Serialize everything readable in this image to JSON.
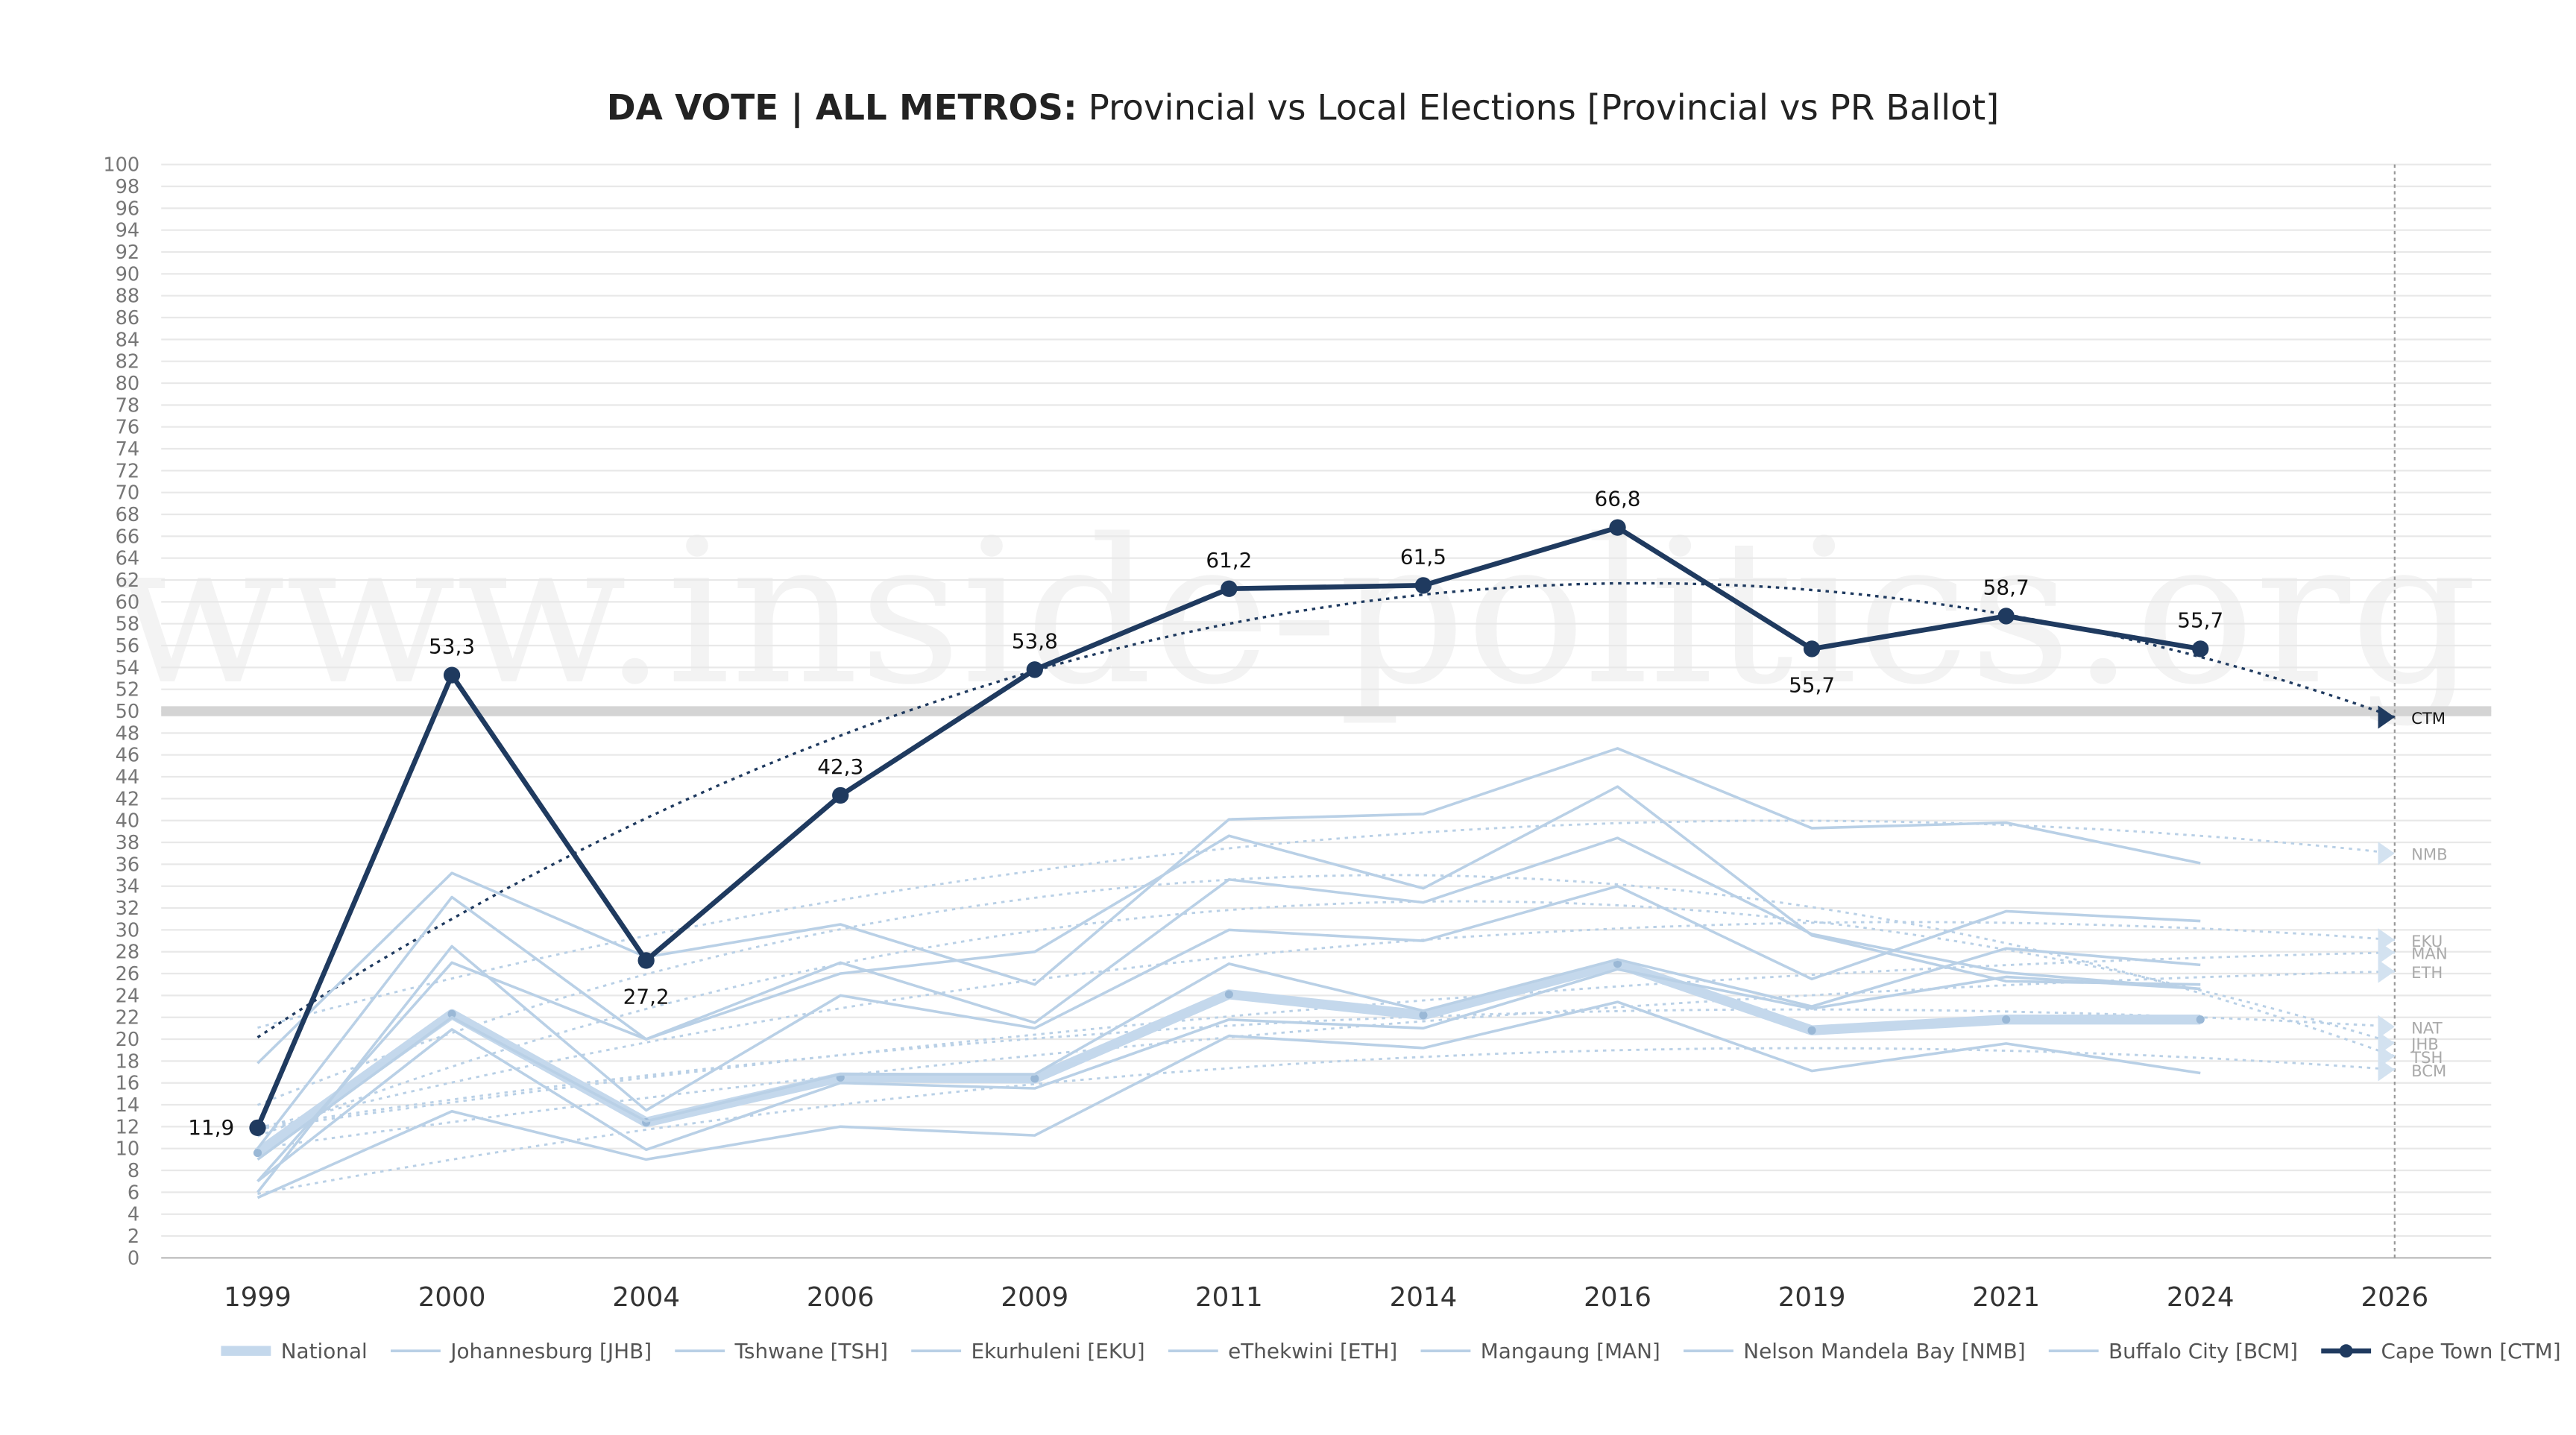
{
  "chart_data": {
    "type": "line",
    "title_bold": "DA VOTE | ALL METROS:",
    "title": "Provincial vs Local Elections [Provincial vs PR Ballot]",
    "watermark": "www.inside-politics.org",
    "categories": [
      "1999",
      "2000",
      "2004",
      "2006",
      "2009",
      "2011",
      "2014",
      "2016",
      "2019",
      "2021",
      "2024",
      "2026"
    ],
    "ylim": [
      0,
      100
    ],
    "yticks": [
      0,
      2,
      4,
      6,
      8,
      10,
      12,
      14,
      16,
      18,
      20,
      22,
      24,
      26,
      28,
      30,
      32,
      34,
      36,
      38,
      40,
      42,
      44,
      46,
      48,
      50,
      52,
      54,
      56,
      58,
      60,
      62,
      64,
      66,
      68,
      70,
      72,
      74,
      76,
      78,
      80,
      82,
      84,
      86,
      88,
      90,
      92,
      94,
      96,
      98,
      100
    ],
    "grid": true,
    "reference_line": 50,
    "legend": "bottom",
    "series": [
      {
        "name": "National",
        "trend_label": "NAT",
        "color": "#c4d8ec",
        "values": [
          9.6,
          22.3,
          12.4,
          16.5,
          16.4,
          24.1,
          22.2,
          26.9,
          20.8,
          21.8,
          21.8,
          null
        ]
      },
      {
        "name": "Johannesburg [JHB]",
        "trend_label": "JHB",
        "color": "#b9d0e6",
        "values": [
          7.0,
          27.0,
          20.0,
          27.0,
          21.5,
          34.6,
          32.5,
          38.4,
          29.6,
          26.1,
          24.6,
          null
        ]
      },
      {
        "name": "Tshwane [TSH]",
        "trend_label": "TSH",
        "color": "#b9d0e6",
        "values": [
          10.0,
          33.0,
          20.0,
          26.0,
          28.0,
          38.6,
          33.8,
          43.1,
          29.5,
          25.3,
          25.0,
          null
        ]
      },
      {
        "name": "Ekurhuleni [EKU]",
        "trend_label": "EKU",
        "color": "#b9d0e6",
        "values": [
          6.0,
          28.5,
          13.5,
          24.0,
          21.0,
          30.0,
          29.0,
          34.0,
          25.5,
          31.7,
          30.8,
          null
        ]
      },
      {
        "name": "eThekwini [ETH]",
        "trend_label": "ETH",
        "color": "#b9d0e6",
        "values": [
          7.0,
          20.9,
          9.9,
          16.0,
          15.5,
          21.8,
          21.0,
          26.4,
          22.8,
          25.7,
          24.6,
          null
        ]
      },
      {
        "name": "Mangaung [MAN]",
        "trend_label": "MAN",
        "color": "#b9d0e6",
        "values": [
          9.0,
          22.0,
          12.5,
          16.8,
          16.8,
          26.9,
          22.6,
          27.3,
          23.0,
          28.3,
          26.8,
          null
        ]
      },
      {
        "name": "Nelson Mandela Bay [NMB]",
        "trend_label": "NMB",
        "color": "#b9d0e6",
        "values": [
          17.8,
          35.2,
          27.5,
          30.5,
          25.0,
          40.1,
          40.6,
          46.6,
          39.3,
          39.8,
          36.1,
          null
        ]
      },
      {
        "name": "Buffalo City [BCM]",
        "trend_label": "BCM",
        "color": "#b9d0e6",
        "values": [
          5.5,
          13.4,
          9.0,
          12.0,
          11.2,
          20.3,
          19.2,
          23.4,
          17.1,
          19.6,
          16.9,
          null
        ]
      },
      {
        "name": "Cape Town [CTM]",
        "trend_label": "CTM",
        "color": "#1f3a5f",
        "values": [
          11.9,
          53.3,
          27.2,
          42.3,
          53.8,
          61.2,
          61.5,
          66.8,
          55.7,
          58.7,
          55.7,
          null
        ],
        "value_labels": [
          "11,9",
          "53,3",
          "27,2",
          "42,3",
          "53,8",
          "61,2",
          "61,5",
          "66,8",
          "55,7",
          "58,7",
          "55,7",
          null
        ]
      }
    ]
  }
}
